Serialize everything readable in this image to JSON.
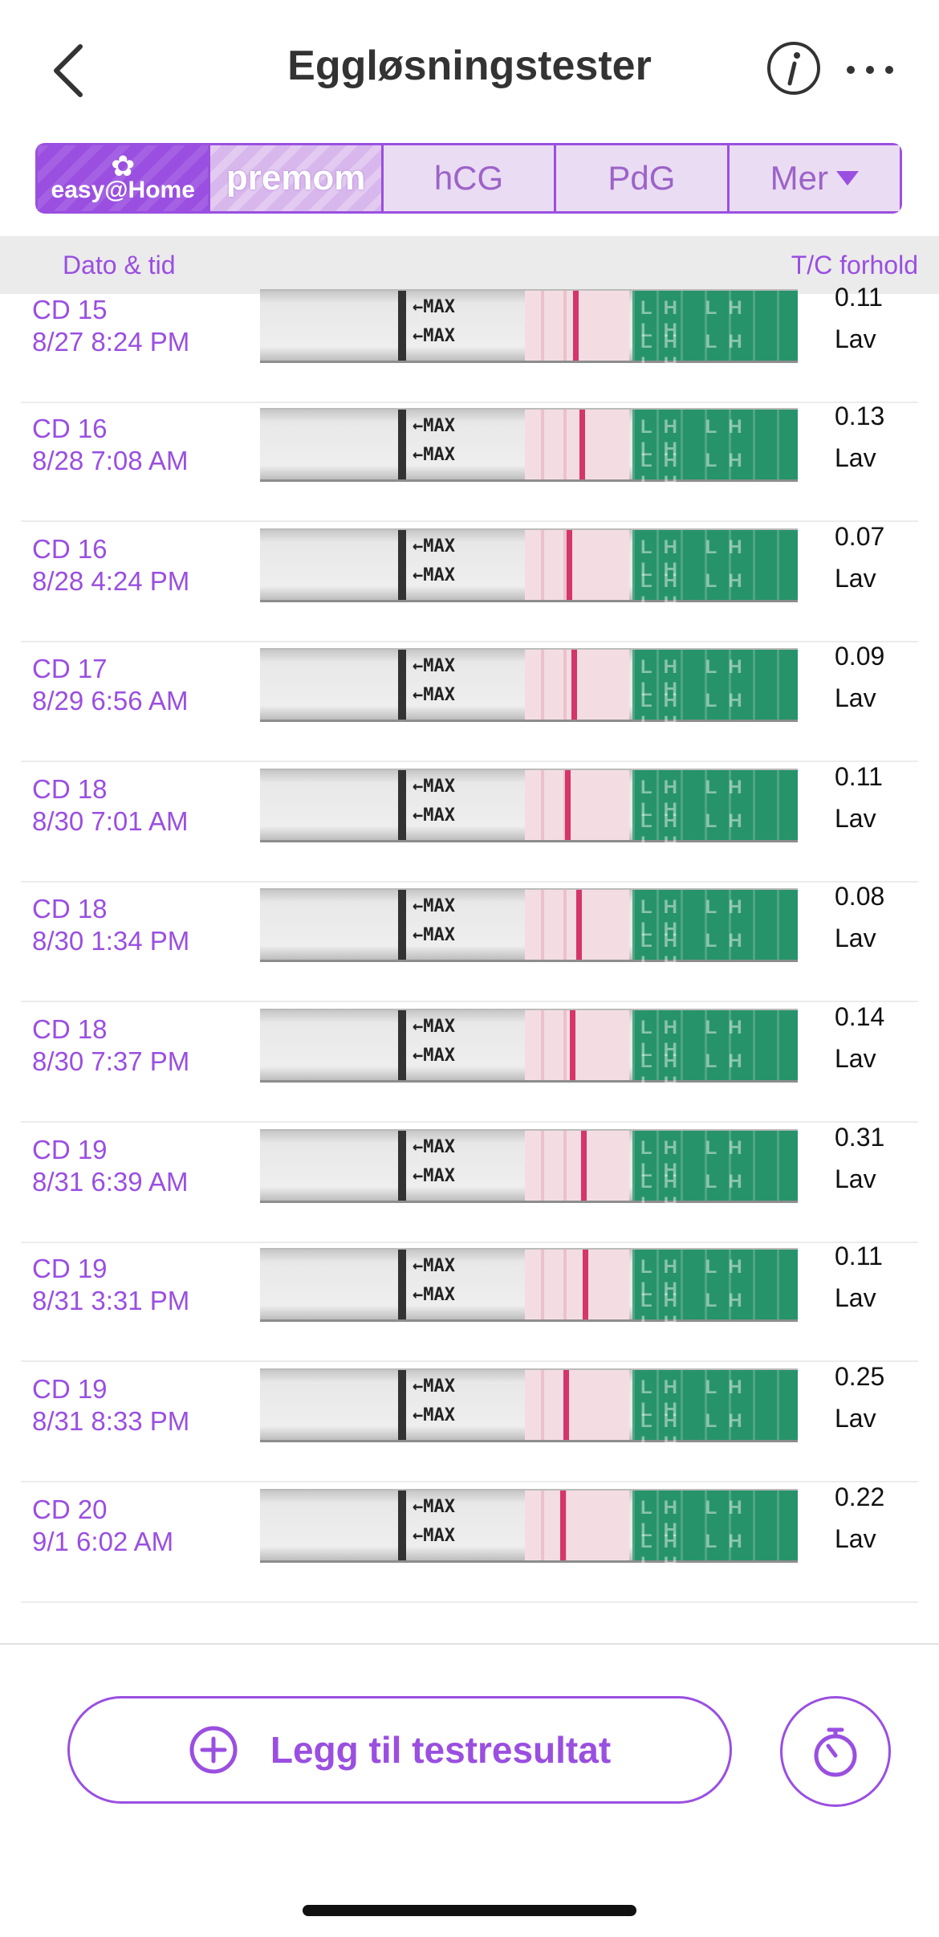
{
  "header": {
    "title": "Eggløsningstester",
    "back_icon": "chevron-left-icon",
    "info_icon": "info-icon",
    "more_icon": "ellipsis-icon"
  },
  "tabs": [
    {
      "label": "easy@Home",
      "id": "easyhome"
    },
    {
      "label": "premom",
      "id": "premom"
    },
    {
      "label": "hCG",
      "id": "hcg"
    },
    {
      "label": "PdG",
      "id": "pdg"
    },
    {
      "label": "Mer",
      "id": "more"
    }
  ],
  "columns": {
    "date_time": "Dato & tid",
    "tc_ratio": "T/C forhold"
  },
  "strip_text": {
    "max": "←MAX",
    "lh": "LH LH LH"
  },
  "tests": [
    {
      "cycle_day": "CD 15",
      "datetime": "8/27 8:24 PM",
      "ratio": "0.11",
      "level": "Lav"
    },
    {
      "cycle_day": "CD 16",
      "datetime": "8/28 7:08 AM",
      "ratio": "0.13",
      "level": "Lav"
    },
    {
      "cycle_day": "CD 16",
      "datetime": "8/28 4:24 PM",
      "ratio": "0.07",
      "level": "Lav"
    },
    {
      "cycle_day": "CD 17",
      "datetime": "8/29 6:56 AM",
      "ratio": "0.09",
      "level": "Lav"
    },
    {
      "cycle_day": "CD 18",
      "datetime": "8/30 7:01 AM",
      "ratio": "0.11",
      "level": "Lav"
    },
    {
      "cycle_day": "CD 18",
      "datetime": "8/30 1:34 PM",
      "ratio": "0.08",
      "level": "Lav"
    },
    {
      "cycle_day": "CD 18",
      "datetime": "8/30 7:37 PM",
      "ratio": "0.14",
      "level": "Lav"
    },
    {
      "cycle_day": "CD 19",
      "datetime": "8/31 6:39 AM",
      "ratio": "0.31",
      "level": "Lav"
    },
    {
      "cycle_day": "CD 19",
      "datetime": "8/31 3:31 PM",
      "ratio": "0.11",
      "level": "Lav"
    },
    {
      "cycle_day": "CD 19",
      "datetime": "8/31 8:33 PM",
      "ratio": "0.25",
      "level": "Lav"
    },
    {
      "cycle_day": "CD 20",
      "datetime": "9/1 6:02 AM",
      "ratio": "0.22",
      "level": "Lav"
    }
  ],
  "footer": {
    "add_label": "Legg til testresultat",
    "add_icon": "plus-circle-icon",
    "timer_icon": "stopwatch-icon"
  },
  "colors": {
    "accent": "#9a4fe0",
    "test_line": "#d4356a",
    "strip_green": "#27936a"
  }
}
